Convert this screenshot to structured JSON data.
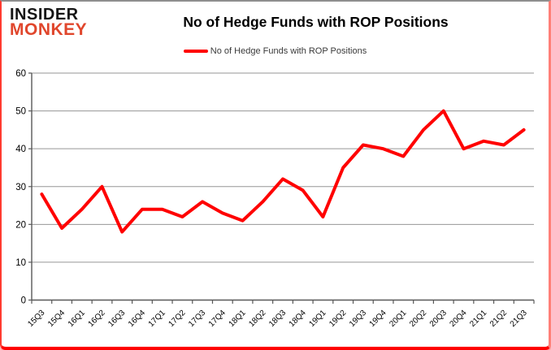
{
  "logo": {
    "line1": "INSIDER",
    "line2": "MONKEY"
  },
  "header": {
    "title": "No of Hedge Funds with ROP Positions"
  },
  "legend": {
    "label": "No of Hedge Funds with ROP Positions"
  },
  "colors": {
    "series": "#ff0000",
    "gridline": "#969696",
    "axis": "#595959",
    "tick_label": "#000000",
    "logo_accent": "#e0462c",
    "border_red": "#ff0000"
  },
  "chart_data": {
    "type": "line",
    "title": "No of Hedge Funds with ROP Positions",
    "categories": [
      "15Q3",
      "15Q4",
      "16Q1",
      "16Q2",
      "16Q3",
      "16Q4",
      "17Q1",
      "17Q2",
      "17Q3",
      "17Q4",
      "18Q1",
      "18Q2",
      "18Q3",
      "18Q4",
      "19Q1",
      "19Q2",
      "19Q3",
      "19Q4",
      "20Q1",
      "20Q2",
      "20Q3",
      "20Q4",
      "21Q1",
      "21Q2",
      "21Q3"
    ],
    "series": [
      {
        "name": "No of Hedge Funds with ROP Positions",
        "color": "#ff0000",
        "values": [
          28,
          19,
          24,
          30,
          18,
          24,
          24,
          22,
          26,
          23,
          21,
          26,
          32,
          29,
          22,
          35,
          41,
          40,
          38,
          45,
          50,
          40,
          42,
          41,
          45
        ]
      }
    ],
    "xlabel": "",
    "ylabel": "",
    "ylim": [
      0,
      60
    ],
    "yticks": [
      0,
      10,
      20,
      30,
      40,
      50,
      60
    ],
    "grid": true,
    "legend_position": "top-center"
  }
}
